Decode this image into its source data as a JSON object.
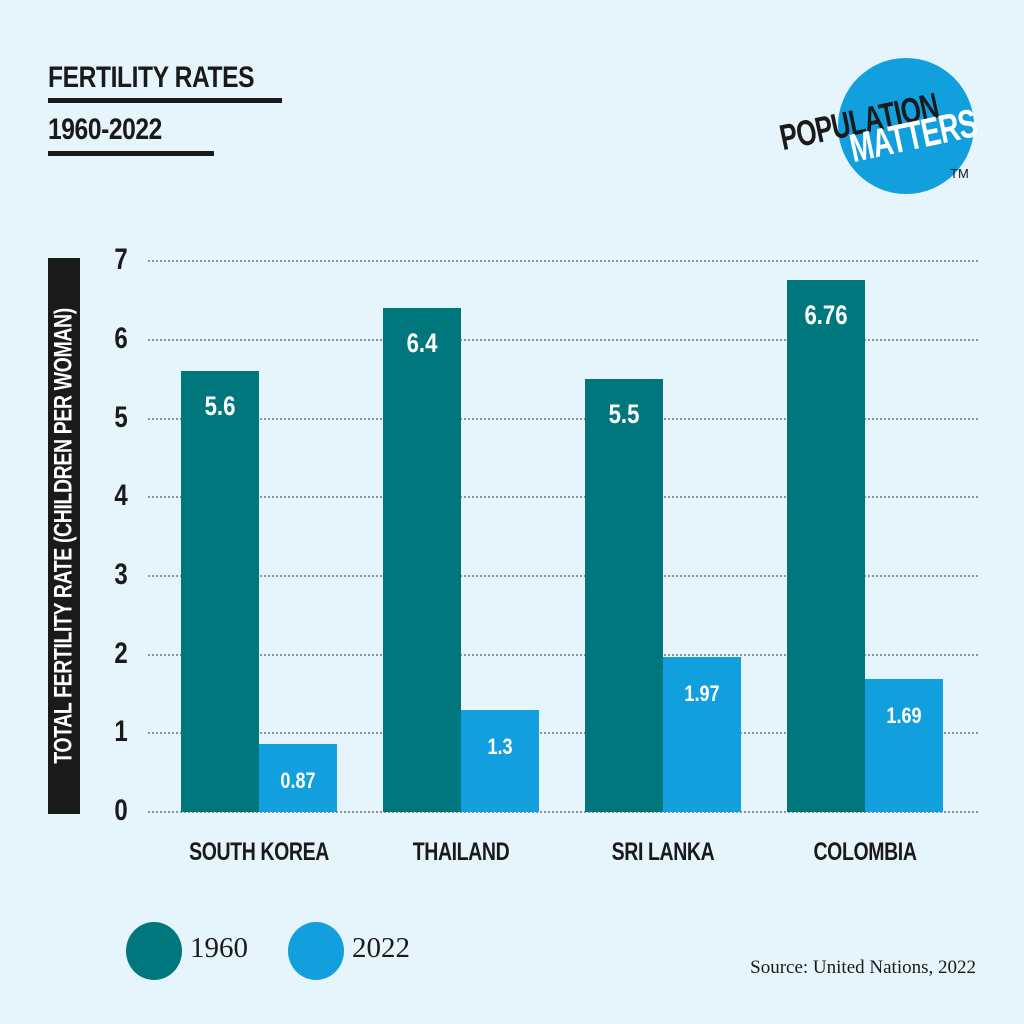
{
  "header": {
    "title_line1": "FERTILITY RATES",
    "title_line2": "1960-2022"
  },
  "logo": {
    "word1": "POPULATION",
    "word2": "MATTERS",
    "trademark": "TM"
  },
  "colors": {
    "background": "#E6F4FC",
    "series_1960": "#00777D",
    "series_2022": "#129FDE",
    "text": "#1a1a1a"
  },
  "legend": {
    "items": [
      {
        "label": "1960",
        "color": "#00777D"
      },
      {
        "label": "2022",
        "color": "#129FDE"
      }
    ]
  },
  "footer": {
    "source": "Source: United Nations, 2022"
  },
  "chart_data": {
    "type": "bar",
    "title": "FERTILITY RATES 1960-2022",
    "xlabel": "",
    "ylabel": "TOTAL FERTILITY RATE (CHILDREN PER WOMAN)",
    "categories": [
      "SOUTH KOREA",
      "THAILAND",
      "SRI LANKA",
      "COLOMBIA"
    ],
    "series": [
      {
        "name": "1960",
        "color": "#00777D",
        "values": [
          5.6,
          6.4,
          5.5,
          6.76
        ],
        "labels": [
          "5.6",
          "6.4",
          "5.5",
          "6.76"
        ]
      },
      {
        "name": "2022",
        "color": "#129FDE",
        "values": [
          0.87,
          1.3,
          1.97,
          1.69
        ],
        "labels": [
          "0.87",
          "1.3",
          "1.97",
          "1.69"
        ]
      }
    ],
    "ylim": [
      0,
      7
    ],
    "yticks": [
      "0",
      "1",
      "2",
      "3",
      "4",
      "5",
      "6",
      "7"
    ],
    "grid": true,
    "grid_style": "dotted horizontal",
    "legend_position": "bottom-left",
    "data_labels": "inside top of bars"
  }
}
